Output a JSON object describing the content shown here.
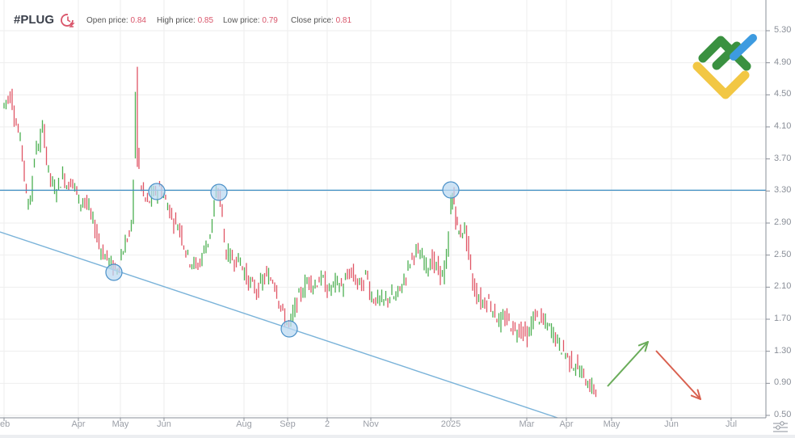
{
  "header": {
    "ticker": "#PLUG",
    "open_label": "Open price:",
    "open_value": "0.84",
    "high_label": "High price:",
    "high_value": "0.85",
    "low_label": "Low price:",
    "low_value": "0.79",
    "close_label": "Close price:",
    "close_value": "0.81"
  },
  "icons": {
    "clock": "history-clock-icon",
    "logo": "brand-logo-icon",
    "settings": "chart-settings-icon"
  },
  "colors": {
    "up": "#4caf50",
    "down": "#e05565",
    "resistance_line": "#3f8fc5",
    "trend_line": "#7ab3d9",
    "circle_fill": "#bcdaf1",
    "circle_stroke": "#4a90c8",
    "arrow_up": "#6aac5a",
    "arrow_down": "#d9604f",
    "logo_green": "#3a9140",
    "logo_blue": "#3d9be0",
    "logo_yellow": "#f2c744",
    "grid": "#eeeeee",
    "axis": "#8a8f98"
  },
  "chart_data": {
    "type": "ohlc",
    "title": "#PLUG",
    "xlabel": "",
    "ylabel": "",
    "ylim": [
      0.5,
      5.3
    ],
    "y_ticks": [
      "5.30",
      "4.90",
      "4.50",
      "4.10",
      "3.70",
      "3.30",
      "2.90",
      "2.50",
      "2.10",
      "1.70",
      "1.30",
      "0.90",
      "0.50"
    ],
    "x_ticks": [
      {
        "label": "eb",
        "x": 5
      },
      {
        "label": "Apr",
        "x": 97
      },
      {
        "label": "May",
        "x": 149
      },
      {
        "label": "Jun",
        "x": 203
      },
      {
        "label": "Aug",
        "x": 302
      },
      {
        "label": "Sep",
        "x": 356
      },
      {
        "label": "2",
        "x": 405
      },
      {
        "label": "Nov",
        "x": 459
      },
      {
        "label": "2025",
        "x": 558
      },
      {
        "label": "Mar",
        "x": 652
      },
      {
        "label": "Apr",
        "x": 701
      },
      {
        "label": "May",
        "x": 757
      },
      {
        "label": "Jun",
        "x": 831
      },
      {
        "label": "Jul",
        "x": 905
      }
    ],
    "price_path": [
      [
        5,
        4.35
      ],
      [
        10,
        4.45
      ],
      [
        15,
        4.5
      ],
      [
        20,
        4.2
      ],
      [
        25,
        4.0
      ],
      [
        30,
        3.7
      ],
      [
        35,
        3.1
      ],
      [
        40,
        3.3
      ],
      [
        45,
        3.8
      ],
      [
        50,
        3.9
      ],
      [
        55,
        4.1
      ],
      [
        60,
        3.6
      ],
      [
        65,
        3.4
      ],
      [
        70,
        3.3
      ],
      [
        75,
        3.4
      ],
      [
        80,
        3.5
      ],
      [
        85,
        3.35
      ],
      [
        90,
        3.45
      ],
      [
        95,
        3.3
      ],
      [
        100,
        3.15
      ],
      [
        105,
        3.2
      ],
      [
        110,
        3.1
      ],
      [
        115,
        2.95
      ],
      [
        120,
        2.8
      ],
      [
        125,
        2.6
      ],
      [
        130,
        2.5
      ],
      [
        135,
        2.45
      ],
      [
        140,
        2.35
      ],
      [
        145,
        2.3
      ],
      [
        150,
        2.45
      ],
      [
        155,
        2.6
      ],
      [
        160,
        2.75
      ],
      [
        165,
        2.85
      ],
      [
        170,
        4.85
      ],
      [
        172,
        3.7
      ],
      [
        175,
        3.4
      ],
      [
        180,
        3.2
      ],
      [
        185,
        3.15
      ],
      [
        190,
        3.25
      ],
      [
        195,
        3.3
      ],
      [
        200,
        3.35
      ],
      [
        205,
        3.2
      ],
      [
        210,
        3.1
      ],
      [
        215,
        2.95
      ],
      [
        220,
        2.9
      ],
      [
        225,
        2.8
      ],
      [
        230,
        2.6
      ],
      [
        235,
        2.45
      ],
      [
        240,
        2.4
      ],
      [
        245,
        2.35
      ],
      [
        250,
        2.45
      ],
      [
        255,
        2.6
      ],
      [
        260,
        2.7
      ],
      [
        265,
        3.0
      ],
      [
        270,
        3.3
      ],
      [
        275,
        3.15
      ],
      [
        280,
        2.55
      ],
      [
        285,
        2.5
      ],
      [
        290,
        2.45
      ],
      [
        295,
        2.45
      ],
      [
        300,
        2.4
      ],
      [
        305,
        2.25
      ],
      [
        310,
        2.15
      ],
      [
        315,
        2.1
      ],
      [
        320,
        2.05
      ],
      [
        325,
        2.15
      ],
      [
        330,
        2.25
      ],
      [
        335,
        2.2
      ],
      [
        340,
        2.2
      ],
      [
        345,
        2.0
      ],
      [
        350,
        1.8
      ],
      [
        355,
        1.68
      ],
      [
        360,
        1.62
      ],
      [
        365,
        1.8
      ],
      [
        370,
        1.95
      ],
      [
        375,
        2.05
      ],
      [
        380,
        2.15
      ],
      [
        385,
        2.2
      ],
      [
        390,
        2.1
      ],
      [
        395,
        2.2
      ],
      [
        400,
        2.2
      ],
      [
        405,
        2.1
      ],
      [
        410,
        2.05
      ],
      [
        415,
        2.15
      ],
      [
        420,
        2.15
      ],
      [
        425,
        2.1
      ],
      [
        430,
        2.2
      ],
      [
        435,
        2.3
      ],
      [
        440,
        2.2
      ],
      [
        445,
        2.15
      ],
      [
        450,
        2.1
      ],
      [
        455,
        2.3
      ],
      [
        460,
        2.0
      ],
      [
        465,
        1.95
      ],
      [
        470,
        1.95
      ],
      [
        475,
        1.9
      ],
      [
        480,
        1.95
      ],
      [
        485,
        2.0
      ],
      [
        490,
        1.95
      ],
      [
        495,
        2.05
      ],
      [
        500,
        2.15
      ],
      [
        505,
        2.3
      ],
      [
        510,
        2.45
      ],
      [
        515,
        2.55
      ],
      [
        520,
        2.5
      ],
      [
        525,
        2.45
      ],
      [
        530,
        2.35
      ],
      [
        535,
        2.45
      ],
      [
        540,
        2.35
      ],
      [
        545,
        2.3
      ],
      [
        550,
        2.25
      ],
      [
        555,
        2.5
      ],
      [
        558,
        3.1
      ],
      [
        562,
        3.25
      ],
      [
        566,
        2.9
      ],
      [
        570,
        2.75
      ],
      [
        575,
        2.85
      ],
      [
        580,
        2.65
      ],
      [
        585,
        2.2
      ],
      [
        590,
        2.05
      ],
      [
        595,
        1.95
      ],
      [
        600,
        1.9
      ],
      [
        605,
        1.95
      ],
      [
        610,
        1.85
      ],
      [
        615,
        1.75
      ],
      [
        620,
        1.65
      ],
      [
        625,
        1.7
      ],
      [
        630,
        1.7
      ],
      [
        635,
        1.6
      ],
      [
        640,
        1.55
      ],
      [
        645,
        1.6
      ],
      [
        650,
        1.55
      ],
      [
        655,
        1.45
      ],
      [
        660,
        1.7
      ],
      [
        665,
        1.75
      ],
      [
        670,
        1.7
      ],
      [
        675,
        1.65
      ],
      [
        680,
        1.6
      ],
      [
        685,
        1.55
      ],
      [
        690,
        1.45
      ],
      [
        695,
        1.35
      ],
      [
        700,
        1.3
      ],
      [
        705,
        1.2
      ],
      [
        710,
        1.15
      ],
      [
        715,
        1.1
      ],
      [
        720,
        1.05
      ],
      [
        725,
        0.95
      ],
      [
        730,
        0.9
      ],
      [
        735,
        0.82
      ],
      [
        740,
        0.82
      ]
    ],
    "annotations": {
      "resistance_price": 3.31,
      "trend_line": {
        "x1": 0,
        "y1": 287,
        "x2": 690,
        "y2": 517
      },
      "circles": [
        {
          "x": 141,
          "y": 337
        },
        {
          "x": 194,
          "y": 237
        },
        {
          "x": 271,
          "y": 238
        },
        {
          "x": 358,
          "y": 407
        },
        {
          "x": 558,
          "y": 235
        }
      ],
      "arrow_up": {
        "x1": 752,
        "y1": 478,
        "x2": 802,
        "y2": 423
      },
      "arrow_down": {
        "x1": 812,
        "y1": 434,
        "x2": 867,
        "y2": 494
      }
    }
  }
}
